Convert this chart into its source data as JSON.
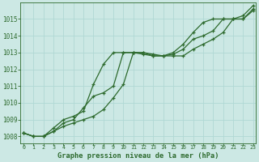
{
  "title": "Graphe pression niveau de la mer (hPa)",
  "background_color": "#cce8e4",
  "grid_color": "#b0d8d4",
  "line_color": "#2d6a2d",
  "x_labels": [
    "0",
    "1",
    "2",
    "3",
    "4",
    "5",
    "6",
    "7",
    "8",
    "9",
    "10",
    "11",
    "12",
    "13",
    "14",
    "15",
    "16",
    "17",
    "18",
    "19",
    "20",
    "21",
    "22",
    "23"
  ],
  "x_values": [
    0,
    1,
    2,
    3,
    4,
    5,
    6,
    7,
    8,
    9,
    10,
    11,
    12,
    13,
    14,
    15,
    16,
    17,
    18,
    19,
    20,
    21,
    22,
    23
  ],
  "ylim": [
    1007.6,
    1016.0
  ],
  "yticks": [
    1008,
    1009,
    1010,
    1011,
    1012,
    1013,
    1014,
    1015
  ],
  "xlim": [
    -0.3,
    23.3
  ],
  "series1": [
    1008.2,
    1008.0,
    1008.0,
    1008.3,
    1008.6,
    1008.8,
    1009.0,
    1009.2,
    1009.6,
    1010.3,
    1011.1,
    1013.0,
    1013.0,
    1012.9,
    1012.8,
    1012.8,
    1012.8,
    1013.2,
    1013.5,
    1013.8,
    1014.2,
    1015.0,
    1015.0,
    1015.6
  ],
  "series2": [
    1008.2,
    1008.0,
    1008.0,
    1008.3,
    1008.8,
    1009.0,
    1009.7,
    1010.4,
    1010.6,
    1011.0,
    1013.0,
    1013.0,
    1013.0,
    1012.8,
    1012.8,
    1012.9,
    1013.2,
    1013.8,
    1014.0,
    1014.3,
    1015.0,
    1015.0,
    1015.2,
    1015.8
  ],
  "series3": [
    1008.2,
    1008.0,
    1008.0,
    1008.5,
    1009.0,
    1009.2,
    1009.5,
    1011.1,
    1012.3,
    1013.0,
    1013.0,
    1013.0,
    1012.9,
    1012.8,
    1012.8,
    1013.0,
    1013.5,
    1014.2,
    1014.8,
    1015.0,
    1015.0,
    1015.0,
    1015.0,
    1015.5
  ]
}
